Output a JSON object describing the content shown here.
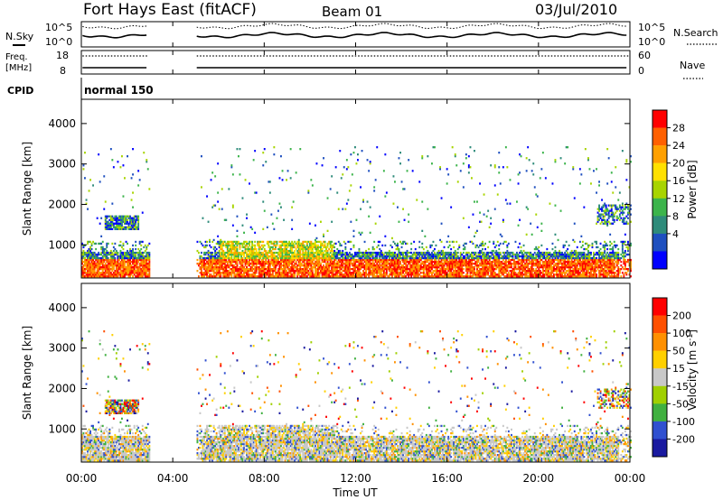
{
  "header": {
    "station": "Fort Hays East (fitACF)",
    "beam": "Beam 01",
    "date": "03/Jul/2010"
  },
  "summary_panels": {
    "nsky_label": "N.Sky",
    "nsky_ticks": [
      "10^5",
      "10^0"
    ],
    "nsearch_label": "N.Search",
    "nsearch_ticks": [
      "10^5",
      "10^0"
    ],
    "freq_label": "Freq.",
    "freq_unit": "[MHz]",
    "freq_ticks": [
      "18",
      "8"
    ],
    "nave_label": "Nave",
    "nave_ticks": [
      "60",
      "0"
    ],
    "cpid_label": "CPID",
    "cpid_value": "normal 150"
  },
  "chart_data": [
    {
      "type": "heatmap",
      "name": "power",
      "ylabel": "Slant Range [km]",
      "xlabel": "Time UT",
      "x_ticks": [
        "00:00",
        "04:00",
        "08:00",
        "12:00",
        "16:00",
        "20:00",
        "00:00"
      ],
      "xlim_hours": [
        0,
        24
      ],
      "y_ticks": [
        1000,
        2000,
        3000,
        4000
      ],
      "ylim": [
        180,
        4600
      ],
      "data_gap_hours": [
        3.0,
        5.0
      ],
      "colorbar": {
        "label": "Power [dB]",
        "ticks": [
          "4",
          "8",
          "12",
          "16",
          "20",
          "24",
          "28"
        ],
        "colors": [
          "#0000ff",
          "#1e4fbf",
          "#2e8b7a",
          "#3cb44b",
          "#a8d400",
          "#ffe000",
          "#ffa000",
          "#ff6000",
          "#ff0000"
        ]
      }
    },
    {
      "type": "heatmap",
      "name": "velocity",
      "ylabel": "Slant Range [km]",
      "xlabel": "Time UT",
      "x_ticks": [
        "00:00",
        "04:00",
        "08:00",
        "12:00",
        "16:00",
        "20:00",
        "00:00"
      ],
      "xlim_hours": [
        0,
        24
      ],
      "y_ticks": [
        1000,
        2000,
        3000,
        4000
      ],
      "ylim": [
        180,
        4600
      ],
      "data_gap_hours": [
        3.0,
        5.0
      ],
      "colorbar": {
        "label": "Velocity [m s",
        "label_sup": "-1",
        "label_end": "]",
        "ticks": [
          "200",
          "100",
          "50",
          "15",
          "-15",
          "-50",
          "-100",
          "-200"
        ],
        "colors": [
          "#1a1aa0",
          "#3050d0",
          "#40b040",
          "#a0d000",
          "#c8c8c8",
          "#ffd000",
          "#ff9000",
          "#ff5000",
          "#ff0000"
        ]
      }
    }
  ]
}
